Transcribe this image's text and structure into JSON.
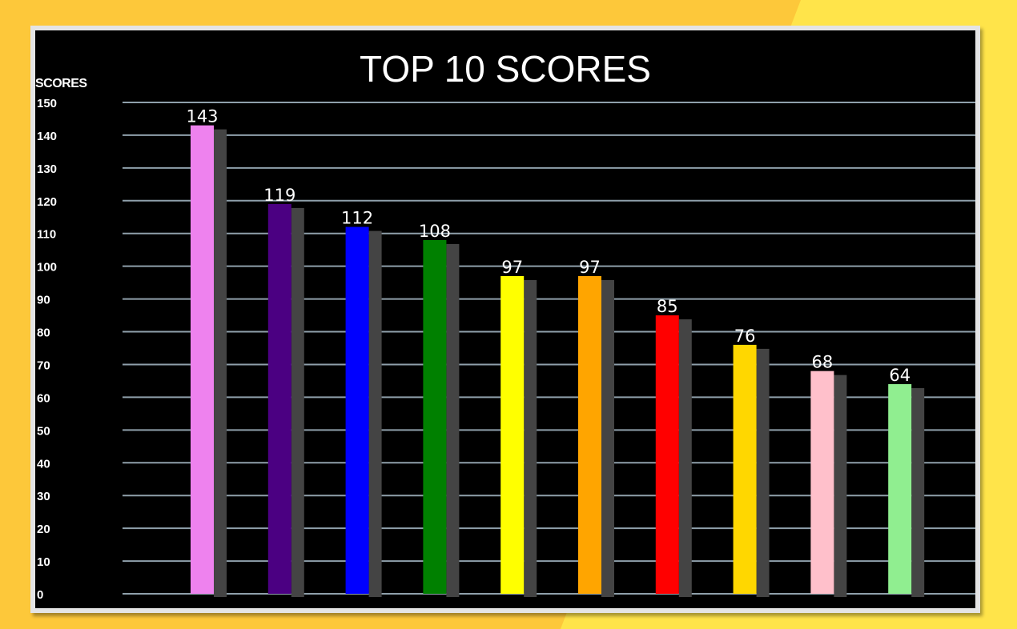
{
  "chart_data": {
    "type": "bar",
    "title": "TOP 10 SCORES",
    "xlabel": "",
    "ylabel": "SCORES",
    "ylim": [
      0,
      150
    ],
    "yticks": [
      0,
      10,
      20,
      30,
      40,
      50,
      60,
      70,
      80,
      90,
      100,
      110,
      120,
      130,
      140,
      150
    ],
    "grid": true,
    "values": [
      143,
      119,
      112,
      108,
      97,
      97,
      85,
      76,
      68,
      64
    ],
    "colors": [
      "#ee82ee",
      "#4b0082",
      "#0000ff",
      "#008000",
      "#ffff00",
      "#ffa500",
      "#ff0000",
      "#ffd700",
      "#ffc0cb",
      "#90ee90"
    ]
  }
}
